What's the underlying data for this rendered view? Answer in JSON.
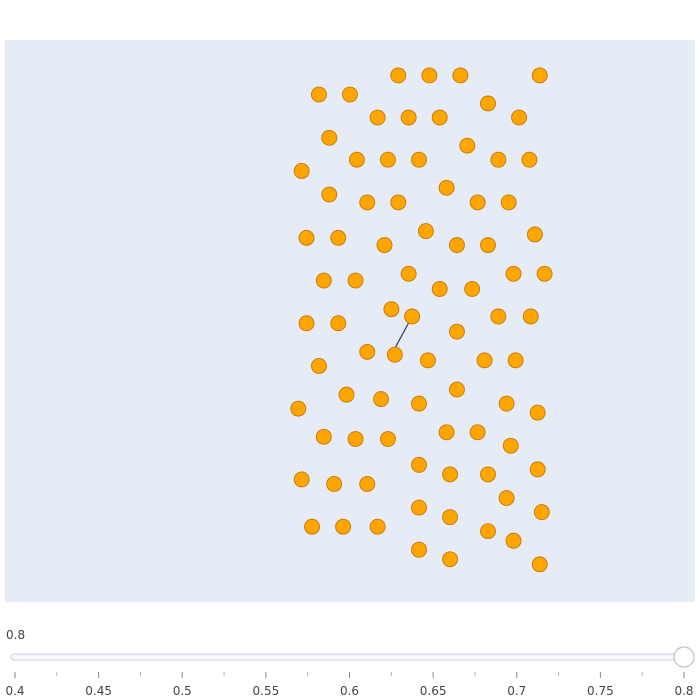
{
  "chart_data": {
    "type": "scatter",
    "plot_bg": "#e5ecf6",
    "marker_color": "#ffa500",
    "marker_edge_color": "#c87800",
    "line_color": "#2a3f5f",
    "xlim": [
      0,
      1
    ],
    "ylim": [
      0,
      1
    ],
    "points": [
      {
        "x": 0.57,
        "y": 0.937
      },
      {
        "x": 0.615,
        "y": 0.937
      },
      {
        "x": 0.66,
        "y": 0.937
      },
      {
        "x": 0.775,
        "y": 0.937
      },
      {
        "x": 0.455,
        "y": 0.903
      },
      {
        "x": 0.5,
        "y": 0.903
      },
      {
        "x": 0.7,
        "y": 0.887
      },
      {
        "x": 0.54,
        "y": 0.862
      },
      {
        "x": 0.585,
        "y": 0.862
      },
      {
        "x": 0.63,
        "y": 0.862
      },
      {
        "x": 0.745,
        "y": 0.862
      },
      {
        "x": 0.47,
        "y": 0.826
      },
      {
        "x": 0.67,
        "y": 0.812
      },
      {
        "x": 0.51,
        "y": 0.787
      },
      {
        "x": 0.555,
        "y": 0.787
      },
      {
        "x": 0.6,
        "y": 0.787
      },
      {
        "x": 0.715,
        "y": 0.787
      },
      {
        "x": 0.76,
        "y": 0.787
      },
      {
        "x": 0.43,
        "y": 0.767
      },
      {
        "x": 0.47,
        "y": 0.725
      },
      {
        "x": 0.64,
        "y": 0.737
      },
      {
        "x": 0.525,
        "y": 0.711
      },
      {
        "x": 0.57,
        "y": 0.711
      },
      {
        "x": 0.685,
        "y": 0.711
      },
      {
        "x": 0.73,
        "y": 0.711
      },
      {
        "x": 0.437,
        "y": 0.648
      },
      {
        "x": 0.483,
        "y": 0.648
      },
      {
        "x": 0.61,
        "y": 0.66
      },
      {
        "x": 0.768,
        "y": 0.654
      },
      {
        "x": 0.55,
        "y": 0.635
      },
      {
        "x": 0.655,
        "y": 0.635
      },
      {
        "x": 0.7,
        "y": 0.635
      },
      {
        "x": 0.585,
        "y": 0.584
      },
      {
        "x": 0.737,
        "y": 0.584
      },
      {
        "x": 0.782,
        "y": 0.584
      },
      {
        "x": 0.462,
        "y": 0.572
      },
      {
        "x": 0.508,
        "y": 0.572
      },
      {
        "x": 0.63,
        "y": 0.557
      },
      {
        "x": 0.677,
        "y": 0.557
      },
      {
        "x": 0.56,
        "y": 0.521
      },
      {
        "x": 0.437,
        "y": 0.496
      },
      {
        "x": 0.483,
        "y": 0.496
      },
      {
        "x": 0.59,
        "y": 0.508
      },
      {
        "x": 0.715,
        "y": 0.508
      },
      {
        "x": 0.762,
        "y": 0.508
      },
      {
        "x": 0.655,
        "y": 0.481
      },
      {
        "x": 0.525,
        "y": 0.445
      },
      {
        "x": 0.565,
        "y": 0.44
      },
      {
        "x": 0.455,
        "y": 0.42
      },
      {
        "x": 0.613,
        "y": 0.43
      },
      {
        "x": 0.695,
        "y": 0.43
      },
      {
        "x": 0.74,
        "y": 0.43
      },
      {
        "x": 0.655,
        "y": 0.378
      },
      {
        "x": 0.495,
        "y": 0.369
      },
      {
        "x": 0.545,
        "y": 0.361
      },
      {
        "x": 0.6,
        "y": 0.353
      },
      {
        "x": 0.727,
        "y": 0.353
      },
      {
        "x": 0.425,
        "y": 0.344
      },
      {
        "x": 0.772,
        "y": 0.337
      },
      {
        "x": 0.64,
        "y": 0.302
      },
      {
        "x": 0.685,
        "y": 0.302
      },
      {
        "x": 0.462,
        "y": 0.294
      },
      {
        "x": 0.508,
        "y": 0.29
      },
      {
        "x": 0.555,
        "y": 0.29
      },
      {
        "x": 0.733,
        "y": 0.278
      },
      {
        "x": 0.6,
        "y": 0.244
      },
      {
        "x": 0.772,
        "y": 0.236
      },
      {
        "x": 0.645,
        "y": 0.227
      },
      {
        "x": 0.7,
        "y": 0.227
      },
      {
        "x": 0.43,
        "y": 0.218
      },
      {
        "x": 0.477,
        "y": 0.21
      },
      {
        "x": 0.525,
        "y": 0.21
      },
      {
        "x": 0.727,
        "y": 0.185
      },
      {
        "x": 0.6,
        "y": 0.168
      },
      {
        "x": 0.778,
        "y": 0.16
      },
      {
        "x": 0.645,
        "y": 0.151
      },
      {
        "x": 0.445,
        "y": 0.134
      },
      {
        "x": 0.49,
        "y": 0.134
      },
      {
        "x": 0.54,
        "y": 0.134
      },
      {
        "x": 0.7,
        "y": 0.126
      },
      {
        "x": 0.737,
        "y": 0.109
      },
      {
        "x": 0.6,
        "y": 0.093
      },
      {
        "x": 0.645,
        "y": 0.076
      },
      {
        "x": 0.775,
        "y": 0.067
      }
    ],
    "line_segments": [
      {
        "x1": 0.56,
        "y1": 0.44,
        "x2": 0.59,
        "y2": 0.508
      }
    ],
    "slider": {
      "current_value_label": "0.8",
      "value": 0.8,
      "min": 0.4,
      "max": 0.8,
      "ticks": [
        "0.4",
        "0.45",
        "0.5",
        "0.55",
        "0.6",
        "0.65",
        "0.7",
        "0.75",
        "0.8"
      ],
      "tick_values": [
        0.4,
        0.45,
        0.5,
        0.55,
        0.6,
        0.65,
        0.7,
        0.75,
        0.8
      ]
    }
  }
}
